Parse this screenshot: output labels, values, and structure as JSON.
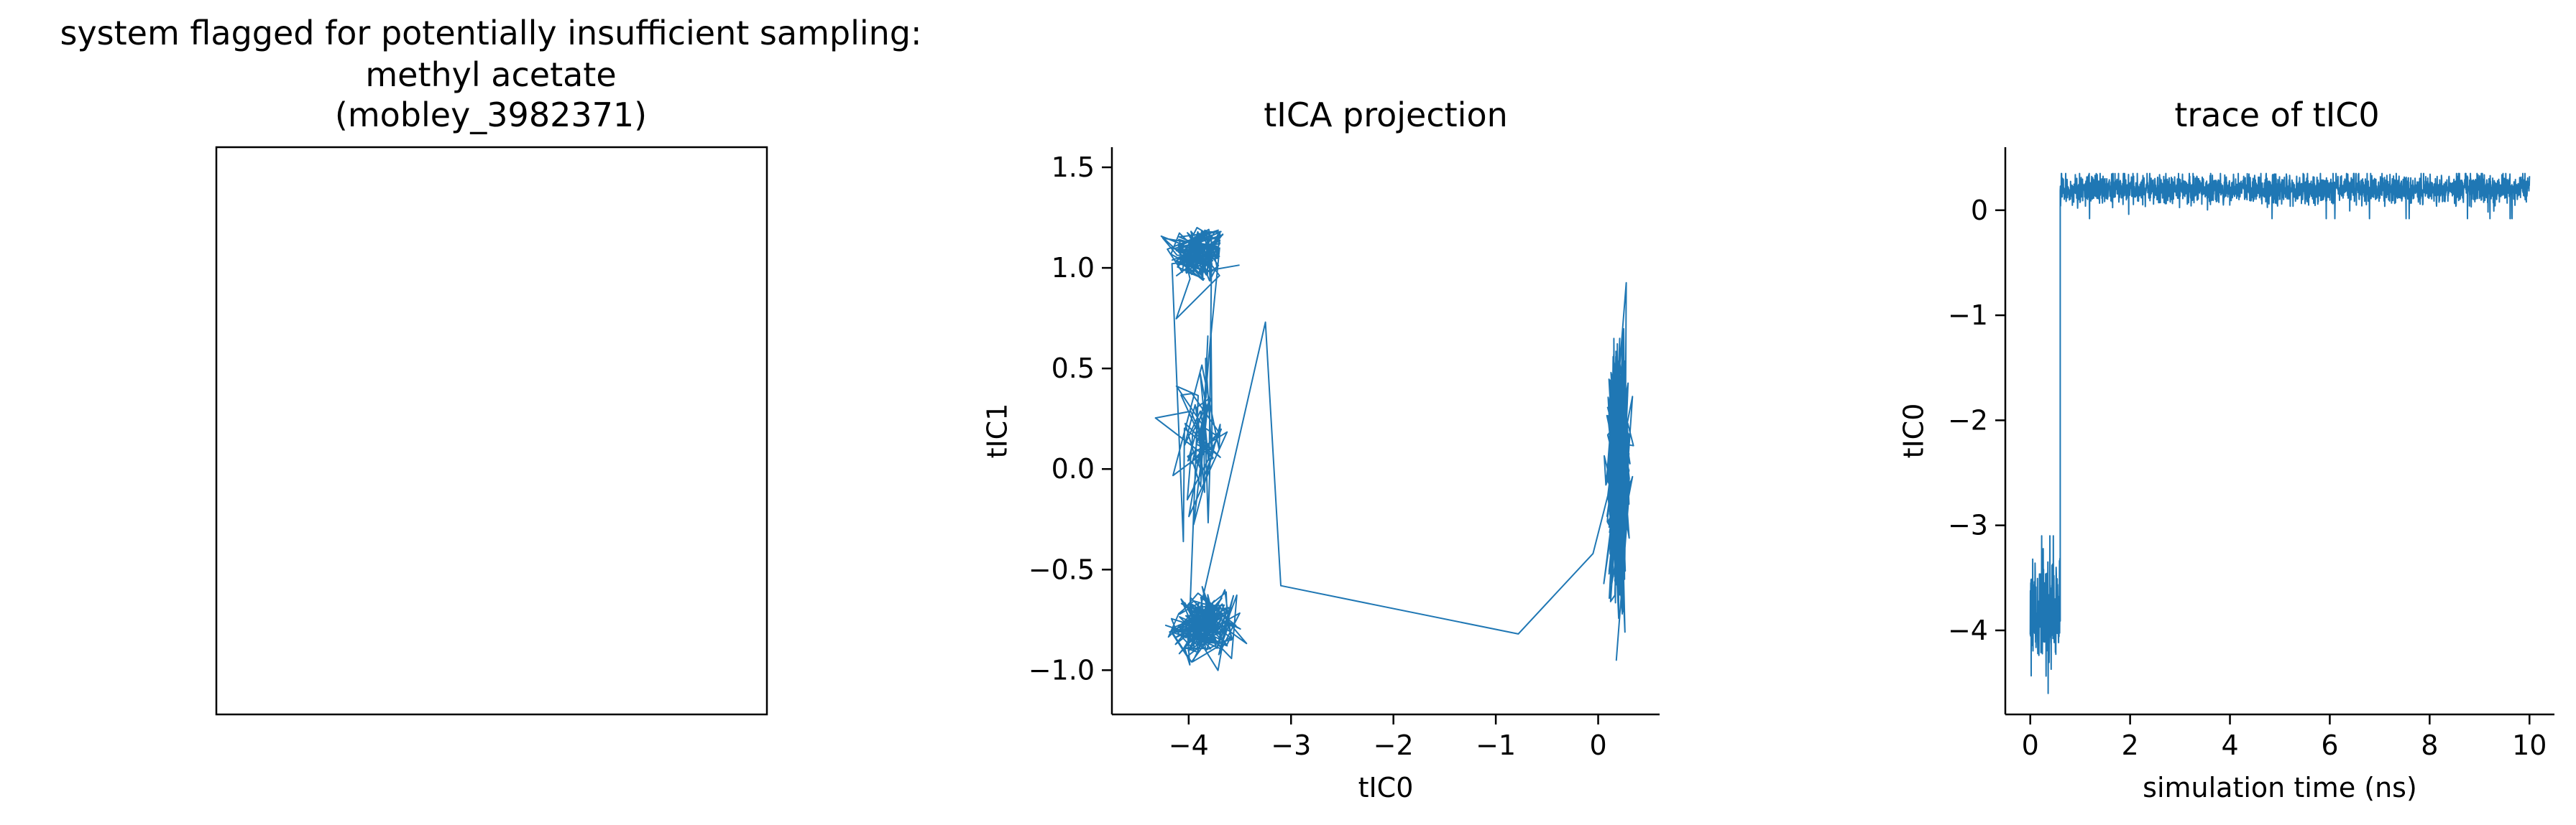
{
  "figure": {
    "background": "#ffffff",
    "series_color": "#1f77b4"
  },
  "chart_data": [
    {
      "panel": "structure",
      "type": "other",
      "title_lines": [
        "system flagged for potentially insufficient sampling:",
        "methyl acetate",
        "(mobley_3982371)"
      ],
      "frame": "empty box, no ticks"
    },
    {
      "panel": "tica-projection",
      "type": "line",
      "title": "tICA projection",
      "xlabel": "tIC0",
      "ylabel": "tIC1",
      "xlim": [
        -4.75,
        0.6
      ],
      "ylim": [
        -1.22,
        1.6
      ],
      "xticks": [
        -4,
        -3,
        -2,
        -1,
        0
      ],
      "xtick_labels": [
        "−4",
        "−3",
        "−2",
        "−1",
        "0"
      ],
      "yticks": [
        -1.0,
        -0.5,
        0.0,
        0.5,
        1.0,
        1.5
      ],
      "ytick_labels": [
        "−1.0",
        "−0.5",
        "0.0",
        "0.5",
        "1.0",
        "1.5"
      ],
      "grid": false,
      "spines": "left and bottom only",
      "series": [
        {
          "color": "#1f77b4",
          "clusters": [
            {
              "x_center": -3.9,
              "y_center": 1.07,
              "x_spread": 0.26,
              "y_spread": 0.14,
              "points": 180
            },
            {
              "x_center": -3.88,
              "y_center": 0.15,
              "x_spread": 0.2,
              "y_spread": 0.4,
              "points": 70
            },
            {
              "x_center": -3.85,
              "y_center": -0.78,
              "x_spread": 0.27,
              "y_spread": 0.14,
              "points": 220
            },
            {
              "x_center": 0.2,
              "y_center": 0.0,
              "x_spread": 0.09,
              "y_spread": 0.45,
              "points": 900
            }
          ],
          "transition_path": [
            {
              "x": -3.25,
              "y": 0.73
            },
            {
              "x": -3.1,
              "y": -0.58
            },
            {
              "x": -0.78,
              "y": -0.82
            },
            {
              "x": -0.05,
              "y": -0.42
            }
          ]
        }
      ]
    },
    {
      "panel": "tic0-trace",
      "type": "line",
      "title": "trace of tIC0",
      "xlabel": "simulation time (ns)",
      "ylabel": "tIC0",
      "xlim": [
        -0.5,
        10.5
      ],
      "ylim": [
        -4.8,
        0.6
      ],
      "xticks": [
        0,
        2,
        4,
        6,
        8,
        10
      ],
      "xtick_labels": [
        "0",
        "2",
        "4",
        "6",
        "8",
        "10"
      ],
      "yticks": [
        -4,
        -3,
        -2,
        -1,
        0
      ],
      "ytick_labels": [
        "−4",
        "−3",
        "−2",
        "−1",
        "0"
      ],
      "grid": false,
      "spines": "left and bottom only",
      "series": [
        {
          "color": "#1f77b4",
          "segments": [
            {
              "t_start": 0.0,
              "t_end": 0.6,
              "level": -3.85,
              "noise": 0.25,
              "min": -4.6,
              "max": -3.1
            },
            {
              "t_start": 0.6,
              "t_end": 10.0,
              "level": 0.2,
              "noise": 0.07,
              "min": -0.25,
              "max": 0.35
            }
          ]
        }
      ]
    }
  ]
}
